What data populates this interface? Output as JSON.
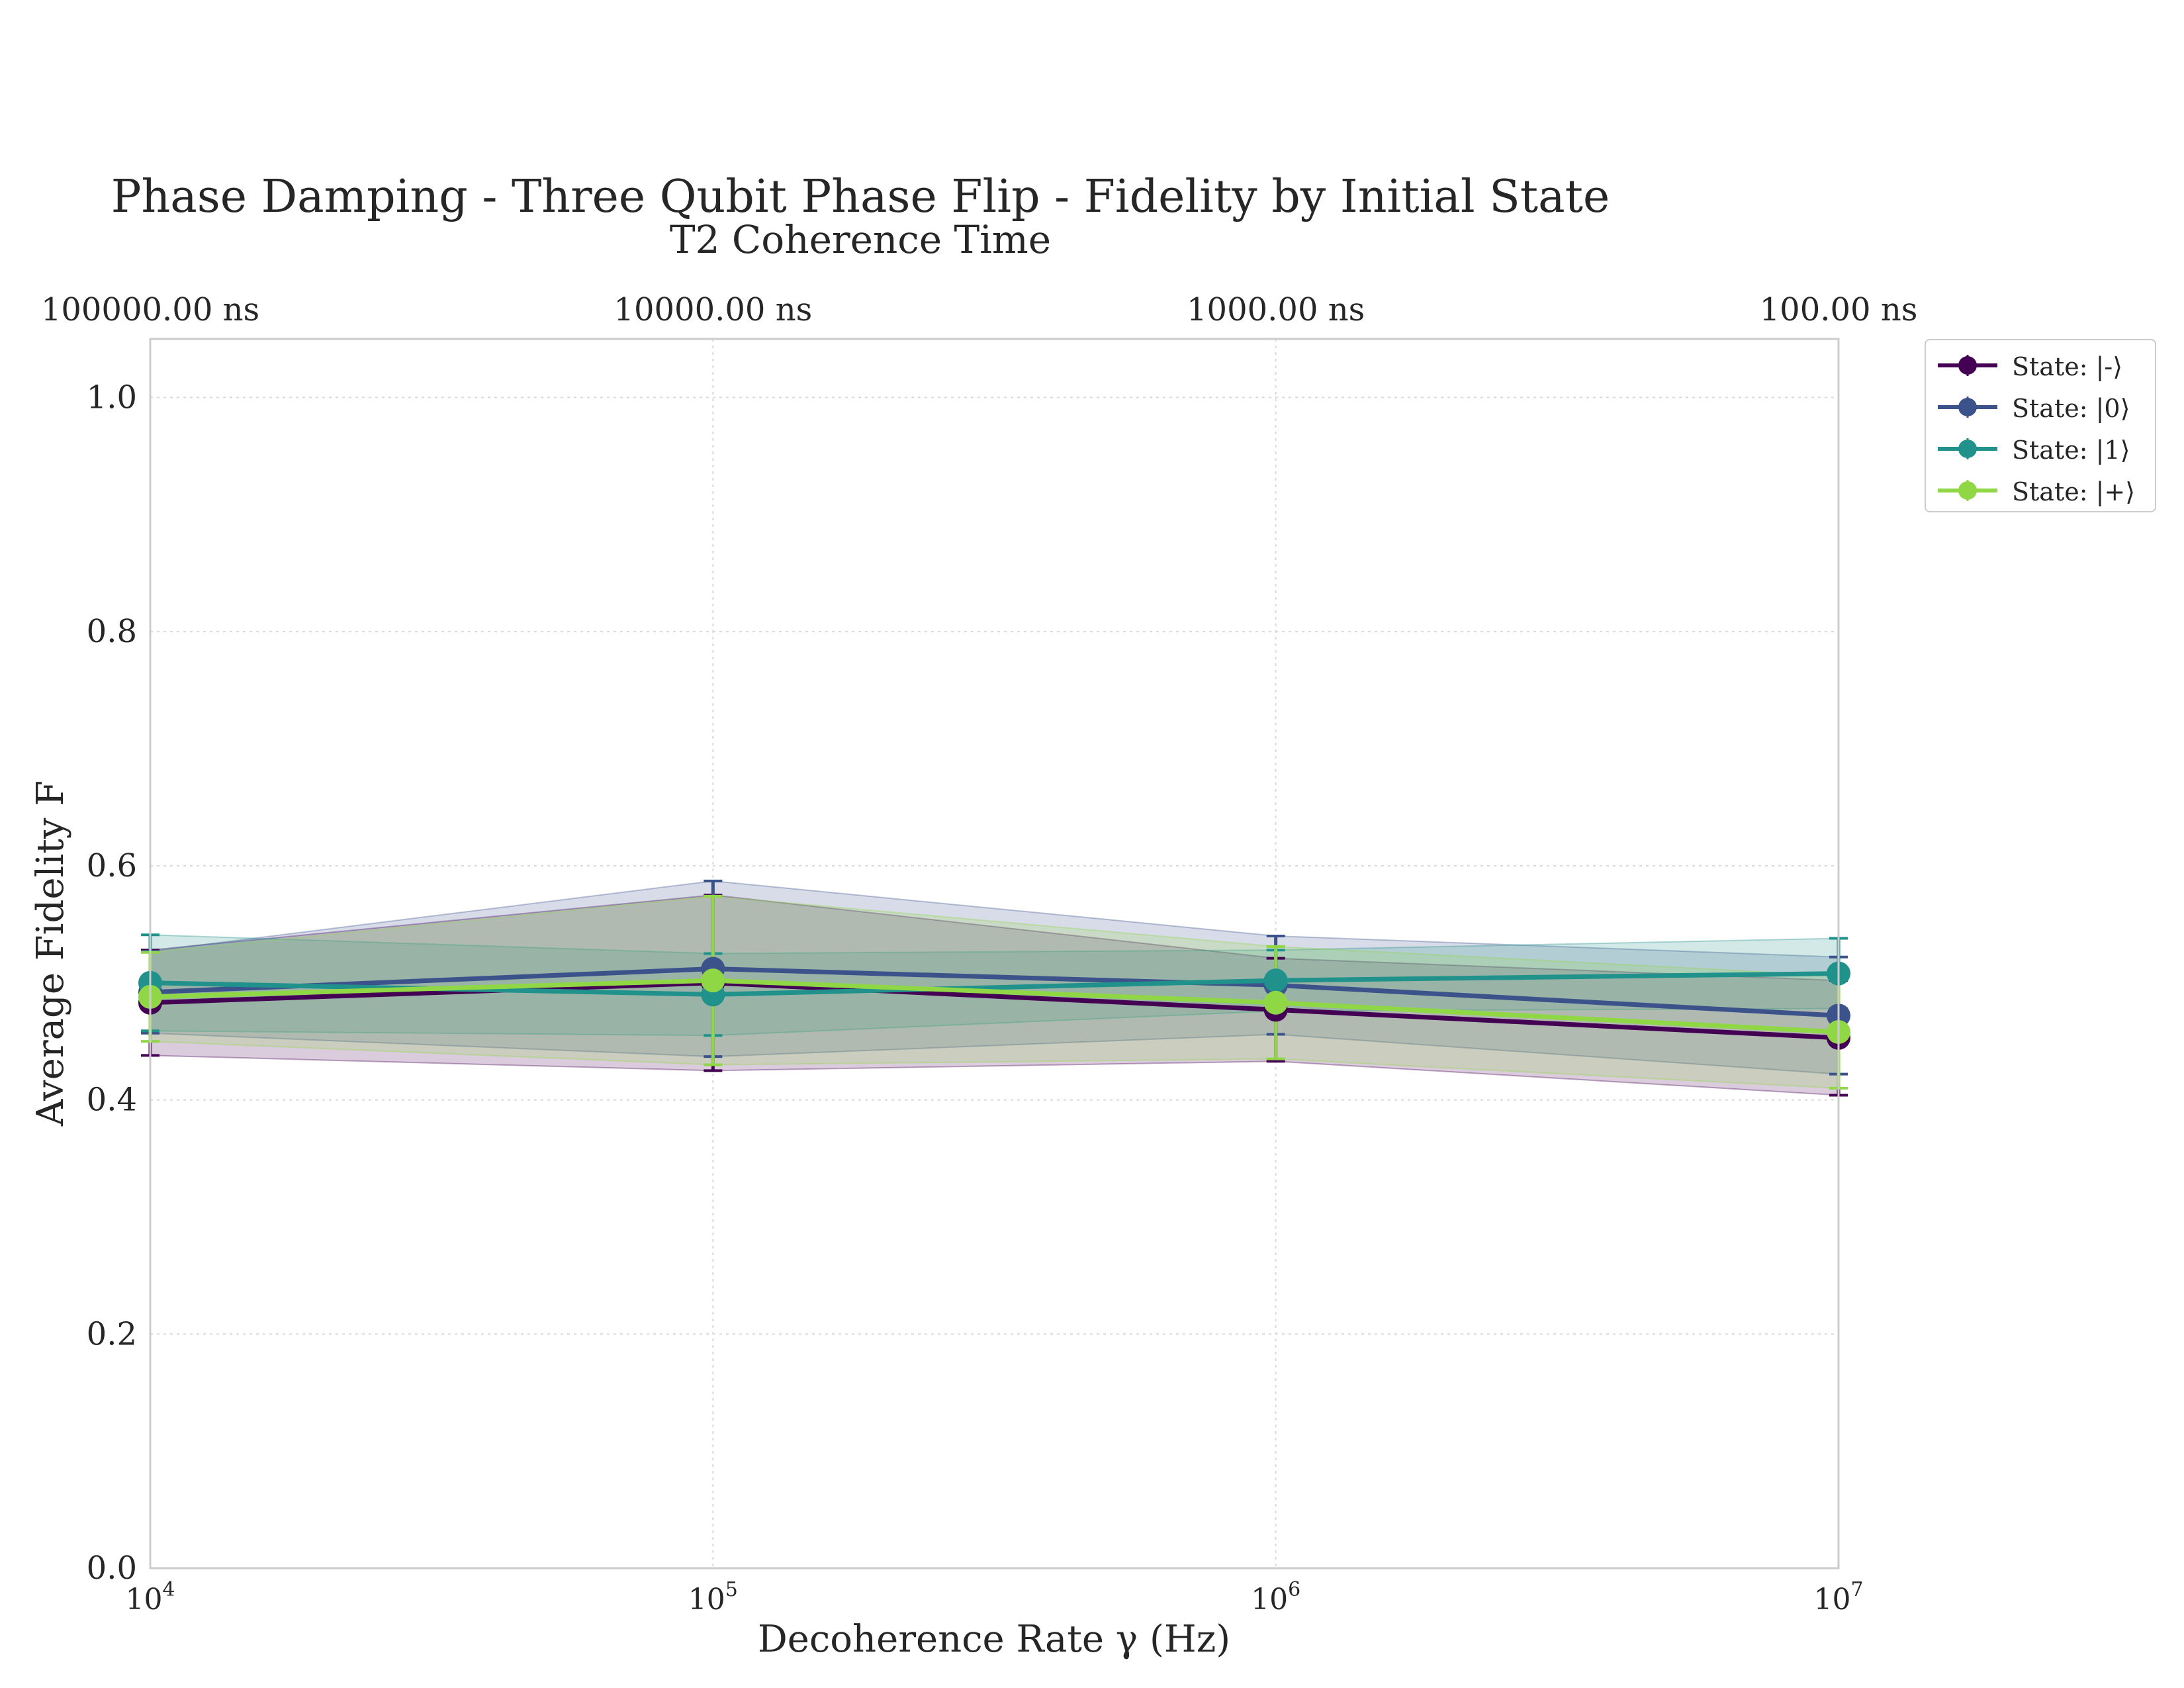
{
  "chart_data": {
    "type": "line",
    "title": "Phase Damping - Three Qubit Phase Flip - Fidelity by Initial State",
    "subtitle": "T2 Coherence Time",
    "xlabel": "Decoherence Rate γ (Hz)",
    "ylabel": "Average Fidelity F",
    "xscale": "log",
    "x": [
      10000,
      100000,
      1000000,
      10000000
    ],
    "xlim": [
      10000,
      10000000
    ],
    "ylim": [
      0.0,
      1.05
    ],
    "x_tick_labels": [
      {
        "base": "10",
        "exp": "4"
      },
      {
        "base": "10",
        "exp": "5"
      },
      {
        "base": "10",
        "exp": "6"
      },
      {
        "base": "10",
        "exp": "7"
      }
    ],
    "y_ticks": [
      0.0,
      0.2,
      0.4,
      0.6,
      0.8,
      1.0
    ],
    "y_tick_labels": [
      "0.0",
      "0.2",
      "0.4",
      "0.6",
      "0.8",
      "1.0"
    ],
    "secondary_x_tick_labels": [
      "100000.00 ns",
      "10000.00 ns",
      "1000.00 ns",
      "100.00 ns"
    ],
    "grid": true,
    "legend_position": "outside-top-right",
    "series": [
      {
        "name": "State: |-⟩",
        "color": "#440154",
        "values": [
          0.483,
          0.5,
          0.477,
          0.453
        ],
        "lower": [
          0.438,
          0.425,
          0.433,
          0.404
        ],
        "upper": [
          0.528,
          0.575,
          0.521,
          0.502
        ]
      },
      {
        "name": "State: |0⟩",
        "color": "#3b528b",
        "values": [
          0.492,
          0.512,
          0.498,
          0.472
        ],
        "lower": [
          0.457,
          0.437,
          0.456,
          0.422
        ],
        "upper": [
          0.527,
          0.587,
          0.54,
          0.522
        ]
      },
      {
        "name": "State: |1⟩",
        "color": "#21918c",
        "values": [
          0.5,
          0.49,
          0.502,
          0.508
        ],
        "lower": [
          0.459,
          0.455,
          0.476,
          0.478
        ],
        "upper": [
          0.541,
          0.525,
          0.528,
          0.538
        ]
      },
      {
        "name": "State: |+⟩",
        "color": "#8fd744",
        "values": [
          0.488,
          0.502,
          0.483,
          0.458
        ],
        "lower": [
          0.45,
          0.43,
          0.435,
          0.41
        ],
        "upper": [
          0.526,
          0.574,
          0.531,
          0.506
        ]
      }
    ]
  }
}
